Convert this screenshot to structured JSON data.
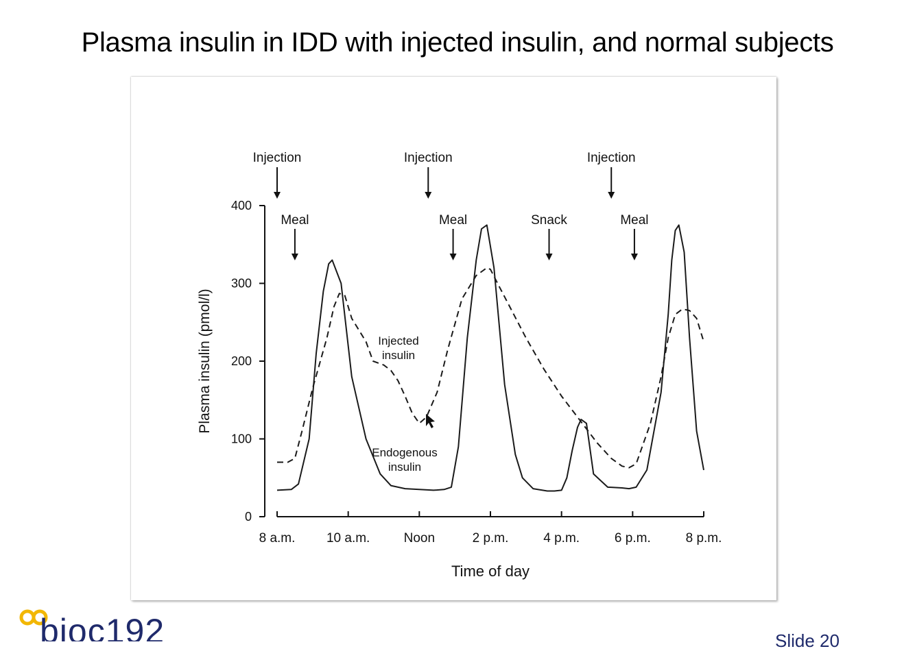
{
  "slide": {
    "title": "Plasma insulin in IDD with injected insulin, and normal subjects",
    "slide_number": "Slide 20",
    "logo_text": "bioc192",
    "accent_color": "#f2b705",
    "brand_color": "#1f2a6b"
  },
  "chart_data": {
    "type": "line",
    "title": "",
    "xlabel": "Time of day",
    "ylabel": "Plasma insulin (pmol/l)",
    "ylim": [
      0,
      400
    ],
    "yticks": [
      0,
      100,
      200,
      300,
      400
    ],
    "xlim": [
      8,
      20
    ],
    "xticks": [
      {
        "value": 8,
        "label": "8 a.m."
      },
      {
        "value": 10,
        "label": "10 a.m."
      },
      {
        "value": 12,
        "label": "Noon"
      },
      {
        "value": 14,
        "label": "2 p.m."
      },
      {
        "value": 16,
        "label": "4 p.m."
      },
      {
        "value": 18,
        "label": "6 p.m."
      },
      {
        "value": 20,
        "label": "8 p.m."
      }
    ],
    "grid": false,
    "series": [
      {
        "name": "Endogenous insulin",
        "style": "solid",
        "x": [
          8,
          8.4,
          8.6,
          8.9,
          9.1,
          9.3,
          9.45,
          9.55,
          9.8,
          10.1,
          10.5,
          10.9,
          11.2,
          11.6,
          12.0,
          12.4,
          12.7,
          12.9,
          13.1,
          13.35,
          13.6,
          13.75,
          13.9,
          14.1,
          14.4,
          14.7,
          14.9,
          15.2,
          15.6,
          15.8,
          16.0,
          16.15,
          16.3,
          16.45,
          16.55,
          16.7,
          16.9,
          17.3,
          17.7,
          17.9,
          18.1,
          18.4,
          18.8,
          19.0,
          19.1,
          19.2,
          19.3,
          19.45,
          19.6,
          19.8,
          20
        ],
        "y": [
          34,
          35,
          42,
          100,
          210,
          290,
          325,
          330,
          300,
          180,
          100,
          55,
          40,
          36,
          35,
          34,
          35,
          38,
          90,
          230,
          330,
          370,
          375,
          320,
          170,
          80,
          50,
          36,
          33,
          33,
          34,
          50,
          85,
          115,
          125,
          120,
          55,
          38,
          37,
          36,
          38,
          60,
          160,
          260,
          330,
          368,
          375,
          340,
          230,
          110,
          60
        ]
      },
      {
        "name": "Injected insulin",
        "style": "dashed",
        "x": [
          8,
          8.3,
          8.5,
          8.7,
          9.0,
          9.4,
          9.6,
          9.75,
          9.9,
          10.1,
          10.5,
          10.7,
          11.0,
          11.2,
          11.4,
          11.6,
          11.8,
          12.0,
          12.2,
          12.5,
          12.8,
          13.2,
          13.6,
          13.9,
          14.0,
          14.2,
          14.6,
          15.0,
          15.5,
          16.0,
          16.5,
          17.0,
          17.4,
          17.7,
          17.9,
          18.1,
          18.5,
          18.8,
          19.0,
          19.2,
          19.4,
          19.6,
          19.8,
          20
        ],
        "y": [
          70,
          70,
          75,
          110,
          165,
          230,
          270,
          287,
          285,
          255,
          225,
          200,
          195,
          188,
          175,
          155,
          133,
          120,
          128,
          160,
          215,
          280,
          310,
          320,
          318,
          300,
          265,
          230,
          190,
          155,
          125,
          95,
          75,
          65,
          63,
          68,
          120,
          180,
          230,
          260,
          267,
          265,
          255,
          225
        ]
      }
    ],
    "annotations": [
      {
        "label": "Injection",
        "x": 8.0
      },
      {
        "label": "Injection",
        "x": 12.25
      },
      {
        "label": "Injection",
        "x": 17.4
      },
      {
        "label": "Meal",
        "x": 8.5
      },
      {
        "label": "Meal",
        "x": 12.95
      },
      {
        "label": "Snack",
        "x": 15.65
      },
      {
        "label": "Meal",
        "x": 18.05
      }
    ],
    "series_labels": [
      {
        "text": [
          "Injected",
          "insulin"
        ]
      },
      {
        "text": [
          "Endogenous",
          "insulin"
        ]
      }
    ]
  }
}
